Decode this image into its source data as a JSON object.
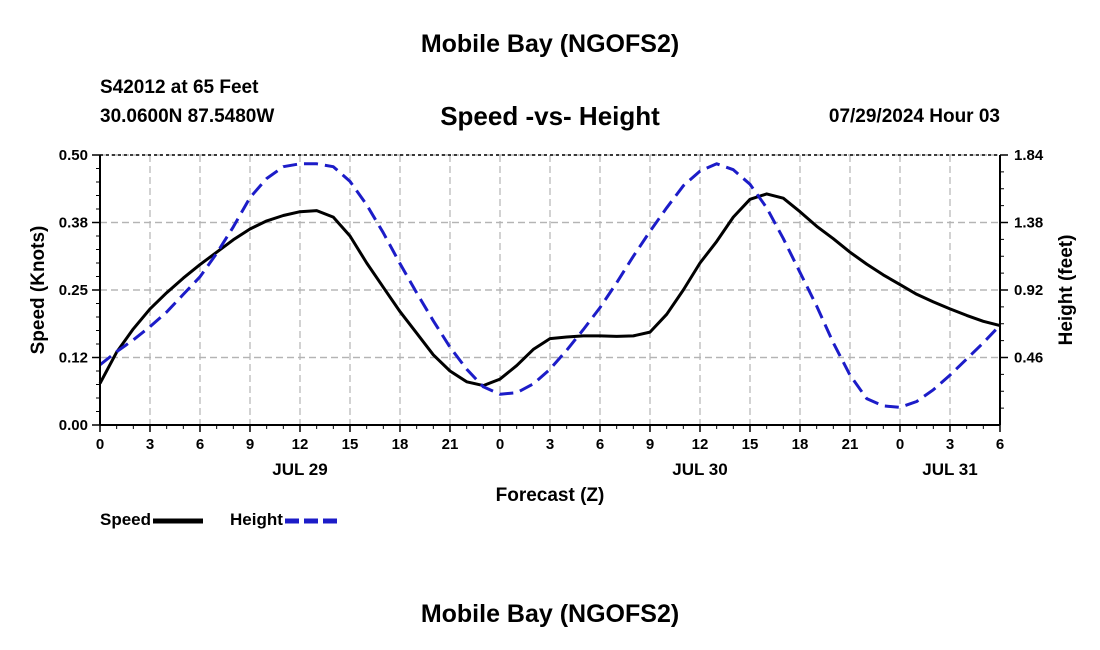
{
  "header": {
    "title": "Mobile Bay (NGOFS2)",
    "station": "S42012 at 65 Feet",
    "coords": "30.0600N  87.5480W",
    "subtitle": "Speed -vs- Height",
    "datetime": "07/29/2024 Hour 03",
    "bottom_title": "Mobile Bay (NGOFS2)"
  },
  "legend": {
    "speed_label": "Speed",
    "height_label": "Height"
  },
  "colors": {
    "speed": "#000000",
    "height": "#1c1cc8",
    "grid": "#b4b4b4"
  },
  "chart_data": {
    "type": "line",
    "title": "Speed -vs- Height",
    "xlabel": "Forecast (Z)",
    "ylabel": "Speed (Knots)",
    "y2label": "Height (feet)",
    "xlim": [
      0,
      54
    ],
    "ylim": [
      0,
      0.5
    ],
    "y2lim": [
      0,
      1.84
    ],
    "x_ticks": [
      0,
      3,
      6,
      9,
      12,
      15,
      18,
      21,
      24,
      27,
      30,
      33,
      36,
      39,
      42,
      45,
      48,
      51,
      54
    ],
    "x_tick_labels": [
      "0",
      "3",
      "6",
      "9",
      "12",
      "15",
      "18",
      "21",
      "0",
      "3",
      "6",
      "9",
      "12",
      "15",
      "18",
      "21",
      "0",
      "3",
      "6"
    ],
    "y_ticks": [
      0,
      0.125,
      0.25,
      0.375,
      0.5
    ],
    "y_tick_labels": [
      "0.00",
      "0.12",
      "0.25",
      "0.38",
      "0.50"
    ],
    "y2_ticks": [
      0.46,
      0.92,
      1.38,
      1.84
    ],
    "y2_tick_labels": [
      "0.46",
      "0.92",
      "1.38",
      "1.84"
    ],
    "date_labels": [
      {
        "x": 12,
        "label": "JUL 29"
      },
      {
        "x": 36,
        "label": "JUL 30"
      },
      {
        "x": 51,
        "label": "JUL 31"
      }
    ],
    "grid": true,
    "legend": "bottom-left",
    "series": [
      {
        "name": "Speed",
        "axis": "left",
        "style": "solid",
        "points": [
          [
            0,
            0.077
          ],
          [
            1,
            0.135
          ],
          [
            2,
            0.178
          ],
          [
            3,
            0.215
          ],
          [
            4,
            0.245
          ],
          [
            5,
            0.272
          ],
          [
            6,
            0.297
          ],
          [
            7,
            0.32
          ],
          [
            8,
            0.343
          ],
          [
            9,
            0.363
          ],
          [
            10,
            0.378
          ],
          [
            11,
            0.388
          ],
          [
            12,
            0.395
          ],
          [
            13,
            0.397
          ],
          [
            14,
            0.385
          ],
          [
            15,
            0.35
          ],
          [
            16,
            0.3
          ],
          [
            17,
            0.255
          ],
          [
            18,
            0.21
          ],
          [
            19,
            0.17
          ],
          [
            20,
            0.13
          ],
          [
            21,
            0.1
          ],
          [
            22,
            0.08
          ],
          [
            23,
            0.073
          ],
          [
            24,
            0.085
          ],
          [
            25,
            0.11
          ],
          [
            26,
            0.14
          ],
          [
            27,
            0.16
          ],
          [
            28,
            0.163
          ],
          [
            29,
            0.165
          ],
          [
            30,
            0.165
          ],
          [
            31,
            0.164
          ],
          [
            32,
            0.165
          ],
          [
            33,
            0.172
          ],
          [
            34,
            0.205
          ],
          [
            35,
            0.25
          ],
          [
            36,
            0.3
          ],
          [
            37,
            0.34
          ],
          [
            38,
            0.385
          ],
          [
            39,
            0.418
          ],
          [
            40,
            0.428
          ],
          [
            41,
            0.42
          ],
          [
            42,
            0.395
          ],
          [
            43,
            0.368
          ],
          [
            44,
            0.345
          ],
          [
            45,
            0.32
          ],
          [
            46,
            0.298
          ],
          [
            47,
            0.278
          ],
          [
            48,
            0.26
          ],
          [
            49,
            0.242
          ],
          [
            50,
            0.228
          ],
          [
            51,
            0.215
          ],
          [
            52,
            0.203
          ],
          [
            53,
            0.192
          ],
          [
            54,
            0.184
          ]
        ]
      },
      {
        "name": "Height",
        "axis": "right",
        "style": "dashed",
        "points": [
          [
            0,
            0.41
          ],
          [
            1,
            0.5
          ],
          [
            2,
            0.58
          ],
          [
            3,
            0.67
          ],
          [
            4,
            0.77
          ],
          [
            5,
            0.89
          ],
          [
            6,
            1.01
          ],
          [
            7,
            1.17
          ],
          [
            8,
            1.35
          ],
          [
            9,
            1.55
          ],
          [
            10,
            1.68
          ],
          [
            11,
            1.76
          ],
          [
            12,
            1.78
          ],
          [
            13,
            1.78
          ],
          [
            14,
            1.76
          ],
          [
            15,
            1.66
          ],
          [
            16,
            1.5
          ],
          [
            17,
            1.31
          ],
          [
            18,
            1.1
          ],
          [
            19,
            0.9
          ],
          [
            20,
            0.71
          ],
          [
            21,
            0.53
          ],
          [
            22,
            0.38
          ],
          [
            23,
            0.26
          ],
          [
            24,
            0.21
          ],
          [
            25,
            0.22
          ],
          [
            26,
            0.28
          ],
          [
            27,
            0.38
          ],
          [
            28,
            0.51
          ],
          [
            29,
            0.65
          ],
          [
            30,
            0.8
          ],
          [
            31,
            0.97
          ],
          [
            32,
            1.15
          ],
          [
            33,
            1.32
          ],
          [
            34,
            1.48
          ],
          [
            35,
            1.63
          ],
          [
            36,
            1.73
          ],
          [
            37,
            1.78
          ],
          [
            38,
            1.74
          ],
          [
            39,
            1.64
          ],
          [
            40,
            1.48
          ],
          [
            41,
            1.27
          ],
          [
            42,
            1.04
          ],
          [
            43,
            0.81
          ],
          [
            44,
            0.56
          ],
          [
            45,
            0.34
          ],
          [
            46,
            0.18
          ],
          [
            47,
            0.13
          ],
          [
            48,
            0.12
          ],
          [
            49,
            0.16
          ],
          [
            50,
            0.24
          ],
          [
            51,
            0.34
          ],
          [
            52,
            0.45
          ],
          [
            53,
            0.56
          ],
          [
            54,
            0.68
          ]
        ]
      }
    ]
  }
}
